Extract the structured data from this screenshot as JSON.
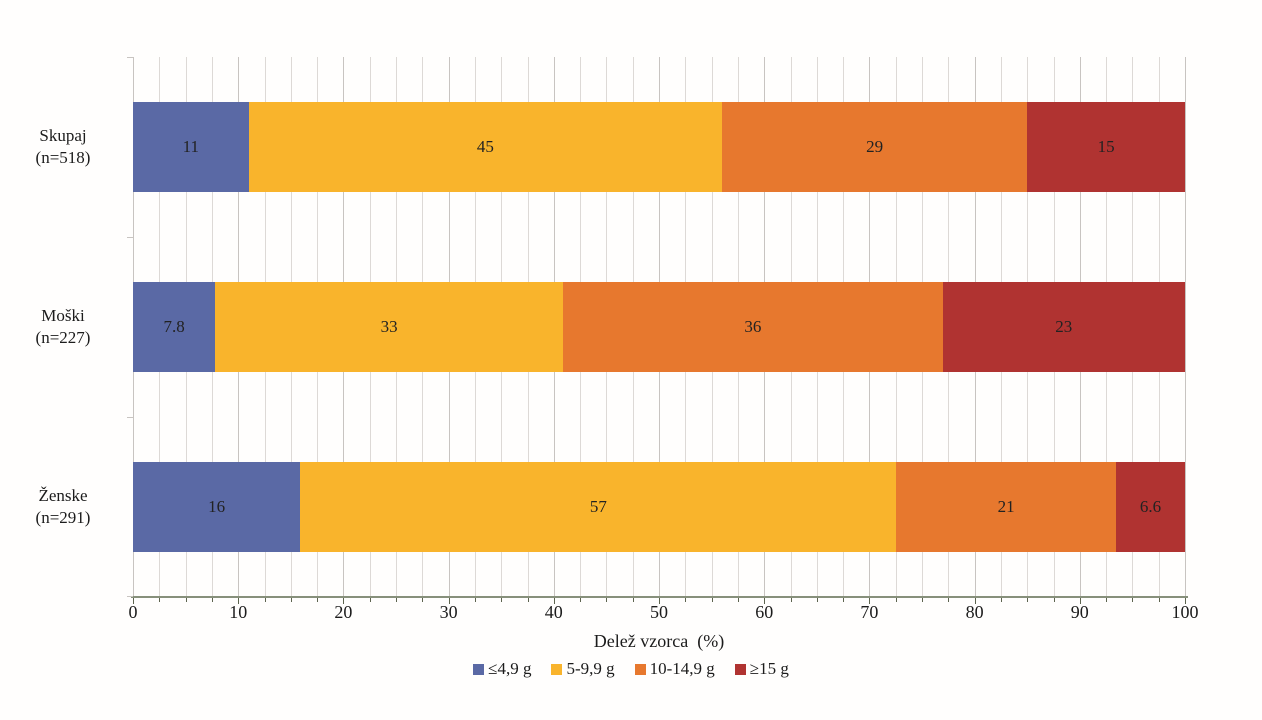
{
  "chart_data": {
    "type": "bar",
    "orientation": "horizontal",
    "stacked": true,
    "title": "",
    "xlabel": "Delež vzorca  (%)",
    "ylabel": "",
    "xlim": [
      0,
      100
    ],
    "x_major_ticks": [
      "0",
      "10",
      "20",
      "30",
      "40",
      "50",
      "60",
      "70",
      "80",
      "90",
      "100"
    ],
    "x_major_step": 10,
    "x_minor_step": 2.5,
    "grid": true,
    "legend_position": "bottom",
    "categories": [
      {
        "label": "Skupaj",
        "n_label": "(n=518)"
      },
      {
        "label": "Moški",
        "n_label": "(n=227)"
      },
      {
        "label": "Ženske",
        "n_label": "(n=291)"
      }
    ],
    "series": [
      {
        "name": "≤4,9 g",
        "color": "#5a69a5",
        "values": [
          11,
          7.8,
          16
        ],
        "value_labels": [
          "11",
          "7.8",
          "16"
        ]
      },
      {
        "name": "5-9,9 g",
        "color": "#f9b42c",
        "values": [
          45,
          33,
          57
        ],
        "value_labels": [
          "45",
          "33",
          "57"
        ]
      },
      {
        "name": "10-14,9 g",
        "color": "#e7782e",
        "values": [
          29,
          36,
          21
        ],
        "value_labels": [
          "29",
          "36",
          "21"
        ]
      },
      {
        "name": "≥15 g",
        "color": "#b03331",
        "values": [
          15,
          23,
          6.6
        ],
        "value_labels": [
          "15",
          "23",
          "6.6"
        ]
      }
    ]
  },
  "colors": {
    "gridline_minor": "#ddd9d6",
    "gridline_major": "#c8c4c1",
    "axis_line": "#87907b",
    "tick": "#5d644f",
    "background": "#fffefd",
    "text": "#1c1c1c"
  }
}
